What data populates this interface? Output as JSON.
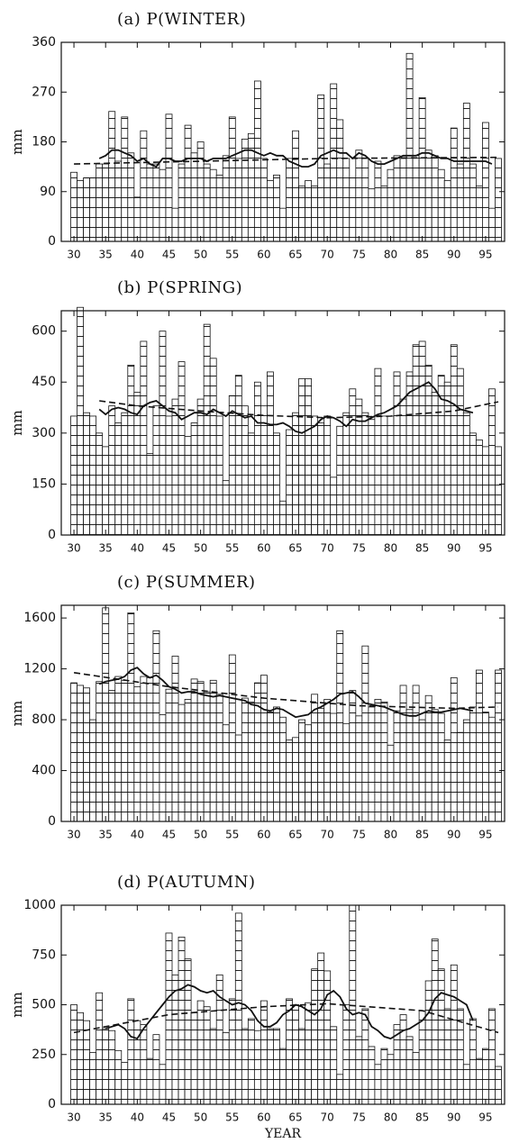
{
  "chart_data": [
    {
      "type": "bar",
      "title": "(a) P(WINTER)",
      "y_label": "mm",
      "x": [
        30,
        31,
        32,
        33,
        34,
        35,
        36,
        37,
        38,
        39,
        40,
        41,
        42,
        43,
        44,
        45,
        46,
        47,
        48,
        49,
        50,
        51,
        52,
        53,
        54,
        55,
        56,
        57,
        58,
        59,
        60,
        61,
        62,
        63,
        64,
        65,
        66,
        67,
        68,
        69,
        70,
        71,
        72,
        73,
        74,
        75,
        76,
        77,
        78,
        79,
        80,
        81,
        82,
        83,
        84,
        85,
        86,
        87,
        88,
        89,
        90,
        91,
        92,
        93,
        94,
        95,
        96,
        97
      ],
      "xlim": [
        28,
        98
      ],
      "xticks": [
        30,
        35,
        40,
        45,
        50,
        55,
        60,
        65,
        70,
        75,
        80,
        85,
        90,
        95
      ],
      "ylim": [
        0,
        360
      ],
      "yticks": [
        0,
        90,
        180,
        270,
        360
      ],
      "series": [
        {
          "style": "bar",
          "color": "#111111",
          "values": [
            125,
            110,
            115,
            115,
            140,
            140,
            235,
            145,
            225,
            160,
            80,
            200,
            140,
            140,
            130,
            230,
            60,
            140,
            210,
            160,
            180,
            140,
            130,
            120,
            155,
            225,
            150,
            185,
            195,
            290,
            150,
            110,
            120,
            60,
            150,
            200,
            100,
            110,
            100,
            265,
            140,
            285,
            220,
            150,
            115,
            165,
            150,
            95,
            145,
            100,
            130,
            155,
            150,
            340,
            155,
            260,
            165,
            155,
            130,
            110,
            205,
            140,
            250,
            140,
            100,
            215,
            60,
            150
          ]
        },
        {
          "style": "solid",
          "color": "#111111",
          "values": [
            null,
            null,
            null,
            null,
            150,
            155,
            165,
            165,
            160,
            155,
            145,
            150,
            140,
            135,
            150,
            150,
            145,
            145,
            150,
            150,
            150,
            145,
            150,
            150,
            150,
            155,
            160,
            165,
            165,
            160,
            155,
            160,
            155,
            155,
            145,
            140,
            135,
            135,
            140,
            155,
            160,
            165,
            160,
            160,
            150,
            160,
            155,
            145,
            140,
            140,
            145,
            150,
            155,
            155,
            155,
            160,
            160,
            155,
            150,
            150,
            145,
            145,
            145,
            145,
            145,
            145,
            140,
            null
          ]
        },
        {
          "style": "dashed",
          "color": "#111111",
          "x": [
            30,
            50,
            70,
            97
          ],
          "values": [
            140,
            145,
            150,
            152
          ]
        }
      ]
    },
    {
      "type": "bar",
      "title": "(b) P(SPRING)",
      "y_label": "mm",
      "x": [
        30,
        31,
        32,
        33,
        34,
        35,
        36,
        37,
        38,
        39,
        40,
        41,
        42,
        43,
        44,
        45,
        46,
        47,
        48,
        49,
        50,
        51,
        52,
        53,
        54,
        55,
        56,
        57,
        58,
        59,
        60,
        61,
        62,
        63,
        64,
        65,
        66,
        67,
        68,
        69,
        70,
        71,
        72,
        73,
        74,
        75,
        76,
        77,
        78,
        79,
        80,
        81,
        82,
        83,
        84,
        85,
        86,
        87,
        88,
        89,
        90,
        91,
        92,
        93,
        94,
        95,
        96,
        97
      ],
      "xlim": [
        28,
        98
      ],
      "xticks": [
        30,
        35,
        40,
        45,
        50,
        55,
        60,
        65,
        70,
        75,
        80,
        85,
        90,
        95
      ],
      "ylim": [
        0,
        660
      ],
      "yticks": [
        0,
        150,
        300,
        450,
        600
      ],
      "series": [
        {
          "style": "bar",
          "color": "#111111",
          "values": [
            350,
            670,
            360,
            350,
            300,
            260,
            380,
            330,
            360,
            500,
            420,
            570,
            240,
            380,
            600,
            350,
            400,
            510,
            290,
            330,
            400,
            620,
            520,
            350,
            160,
            410,
            470,
            380,
            300,
            450,
            380,
            480,
            300,
            100,
            310,
            360,
            460,
            460,
            350,
            330,
            350,
            170,
            320,
            360,
            430,
            400,
            360,
            340,
            490,
            350,
            350,
            480,
            400,
            480,
            560,
            570,
            500,
            420,
            470,
            450,
            560,
            490,
            360,
            300,
            280,
            260,
            430,
            260
          ]
        },
        {
          "style": "solid",
          "color": "#111111",
          "values": [
            null,
            null,
            null,
            null,
            370,
            355,
            370,
            375,
            370,
            360,
            355,
            380,
            390,
            395,
            380,
            365,
            360,
            340,
            350,
            360,
            360,
            355,
            370,
            360,
            350,
            365,
            355,
            345,
            350,
            330,
            330,
            325,
            325,
            330,
            320,
            305,
            300,
            310,
            320,
            340,
            350,
            345,
            335,
            320,
            340,
            335,
            335,
            345,
            355,
            360,
            370,
            380,
            400,
            420,
            430,
            440,
            450,
            430,
            400,
            395,
            385,
            370,
            365,
            360,
            null,
            null,
            null,
            null
          ]
        },
        {
          "style": "dashed",
          "color": "#111111",
          "x": [
            34,
            40,
            50,
            60,
            70,
            80,
            90,
            97
          ],
          "values": [
            395,
            380,
            365,
            352,
            345,
            350,
            365,
            392
          ]
        }
      ]
    },
    {
      "type": "bar",
      "title": "(c) P(SUMMER)",
      "y_label": "mm",
      "x": [
        30,
        31,
        32,
        33,
        34,
        35,
        36,
        37,
        38,
        39,
        40,
        41,
        42,
        43,
        44,
        45,
        46,
        47,
        48,
        49,
        50,
        51,
        52,
        53,
        54,
        55,
        56,
        57,
        58,
        59,
        60,
        61,
        62,
        63,
        64,
        65,
        66,
        67,
        68,
        69,
        70,
        71,
        72,
        73,
        74,
        75,
        76,
        77,
        78,
        79,
        80,
        81,
        82,
        83,
        84,
        85,
        86,
        87,
        88,
        89,
        90,
        91,
        92,
        93,
        94,
        95,
        96,
        97
      ],
      "xlim": [
        28,
        98
      ],
      "xticks": [
        30,
        35,
        40,
        45,
        50,
        55,
        60,
        65,
        70,
        75,
        80,
        85,
        90,
        95
      ],
      "ylim": [
        0,
        1700
      ],
      "yticks": [
        0,
        400,
        800,
        1200,
        1600
      ],
      "series": [
        {
          "style": "bar",
          "color": "#111111",
          "values": [
            1090,
            1070,
            1050,
            800,
            1100,
            1680,
            1030,
            1140,
            1110,
            1640,
            1060,
            1140,
            1130,
            1500,
            840,
            1040,
            1300,
            920,
            960,
            1120,
            1100,
            1020,
            1110,
            1000,
            760,
            1310,
            680,
            970,
            940,
            1090,
            1150,
            860,
            900,
            820,
            640,
            660,
            800,
            760,
            1000,
            890,
            960,
            850,
            1500,
            770,
            1030,
            830,
            1380,
            900,
            960,
            940,
            600,
            870,
            1070,
            880,
            1070,
            800,
            990,
            880,
            850,
            640,
            1130,
            700,
            800,
            900,
            1190,
            860,
            820,
            1190
          ]
        },
        {
          "style": "solid",
          "color": "#111111",
          "values": [
            null,
            null,
            null,
            null,
            1080,
            1100,
            1110,
            1120,
            1140,
            1190,
            1210,
            1160,
            1130,
            1150,
            1110,
            1060,
            1040,
            1010,
            1020,
            1020,
            1000,
            990,
            980,
            990,
            980,
            970,
            960,
            950,
            920,
            910,
            880,
            870,
            890,
            880,
            850,
            820,
            830,
            840,
            880,
            900,
            930,
            960,
            1000,
            1010,
            1020,
            980,
            930,
            920,
            910,
            900,
            880,
            860,
            840,
            830,
            830,
            850,
            870,
            860,
            860,
            870,
            880,
            890,
            880,
            870,
            null,
            null,
            null,
            null
          ]
        },
        {
          "style": "dashed",
          "color": "#111111",
          "x": [
            30,
            45,
            60,
            75,
            90,
            97
          ],
          "values": [
            1170,
            1060,
            970,
            910,
            890,
            900
          ]
        }
      ]
    },
    {
      "type": "bar",
      "title": "(d) P(AUTUMN)",
      "y_label": "mm",
      "x_label": "YEAR",
      "x": [
        30,
        31,
        32,
        33,
        34,
        35,
        36,
        37,
        38,
        39,
        40,
        41,
        42,
        43,
        44,
        45,
        46,
        47,
        48,
        49,
        50,
        51,
        52,
        53,
        54,
        55,
        56,
        57,
        58,
        59,
        60,
        61,
        62,
        63,
        64,
        65,
        66,
        67,
        68,
        69,
        70,
        71,
        72,
        73,
        74,
        75,
        76,
        77,
        78,
        79,
        80,
        81,
        82,
        83,
        84,
        85,
        86,
        87,
        88,
        89,
        90,
        91,
        92,
        93,
        94,
        95,
        96,
        97
      ],
      "xlim": [
        28,
        98
      ],
      "xticks": [
        30,
        35,
        40,
        45,
        50,
        55,
        60,
        65,
        70,
        75,
        80,
        85,
        90,
        95
      ],
      "ylim": [
        0,
        1000
      ],
      "yticks": [
        0,
        250,
        500,
        750,
        1000
      ],
      "series": [
        {
          "style": "bar",
          "color": "#111111",
          "values": [
            500,
            460,
            420,
            260,
            560,
            380,
            370,
            270,
            210,
            530,
            420,
            400,
            230,
            350,
            200,
            860,
            650,
            840,
            730,
            460,
            520,
            490,
            380,
            650,
            360,
            530,
            960,
            380,
            430,
            370,
            520,
            380,
            380,
            280,
            530,
            500,
            380,
            510,
            680,
            760,
            670,
            390,
            150,
            500,
            1000,
            340,
            480,
            290,
            200,
            280,
            250,
            400,
            450,
            340,
            260,
            470,
            620,
            830,
            680,
            480,
            700,
            480,
            200,
            430,
            230,
            280,
            480,
            190
          ]
        },
        {
          "style": "solid",
          "color": "#111111",
          "values": [
            null,
            null,
            null,
            null,
            null,
            380,
            390,
            400,
            380,
            340,
            330,
            380,
            420,
            460,
            500,
            540,
            570,
            580,
            600,
            590,
            570,
            560,
            570,
            540,
            520,
            500,
            510,
            500,
            470,
            420,
            390,
            390,
            410,
            450,
            470,
            500,
            490,
            470,
            450,
            480,
            550,
            570,
            540,
            480,
            450,
            460,
            450,
            390,
            370,
            340,
            330,
            350,
            370,
            380,
            400,
            420,
            460,
            530,
            560,
            550,
            540,
            520,
            500,
            420,
            null,
            null,
            null,
            null
          ]
        },
        {
          "style": "dashed",
          "color": "#111111",
          "x": [
            30,
            45,
            60,
            70,
            85,
            97
          ],
          "values": [
            360,
            450,
            490,
            505,
            470,
            360
          ]
        }
      ]
    }
  ]
}
